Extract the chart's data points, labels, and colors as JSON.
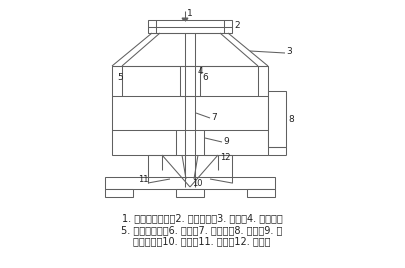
{
  "caption_line1": "1. 中空轴加药斗；2. 大皮带轮；3. 机架；4. 进气孔；",
  "caption_line2": "5. 定子加药斗；6. 套筒；7. 中空轴；8. 槽体；9. 入",
  "caption_line3": "料循环筒；10. 叶轮；11. 定子；12. 稳流板",
  "bg_color": "#ffffff",
  "line_color": "#606060",
  "font_color": "#222222",
  "caption_fontsize": 7.0,
  "label_fontsize": 6.5
}
